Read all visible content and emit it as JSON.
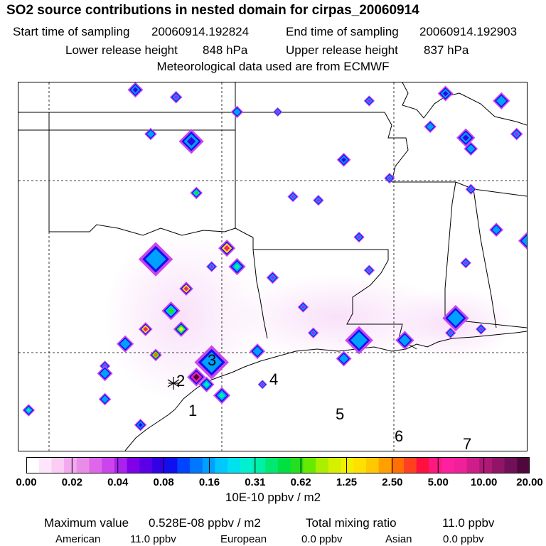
{
  "title": "SO2 source contributions in nested domain for cirpas_20060914",
  "sampling": {
    "start_label": "Start time of sampling",
    "start_value": "20060914.192824",
    "end_label": "End time of sampling",
    "end_value": "20060914.192903"
  },
  "release": {
    "lower_label": "Lower release height",
    "lower_value": "848 hPa",
    "upper_label": "Upper release height",
    "upper_value": "837 hPa"
  },
  "met_note": "Meteorological data used are from ECMWF",
  "colorbar": {
    "ticks": [
      "0.00",
      "0.02",
      "0.04",
      "0.08",
      "0.16",
      "0.31",
      "0.62",
      "1.25",
      "2.50",
      "5.00",
      "10.00",
      "20.00"
    ],
    "units": "10E-10 ppbv / m2",
    "colors": [
      "#ffffff",
      "#fde6fb",
      "#f9cdf4",
      "#f2a9ef",
      "#e98ce9",
      "#de66e8",
      "#cc44ee",
      "#aa22ee",
      "#8000e8",
      "#5a00e6",
      "#3300e8",
      "#1010ee",
      "#0044ff",
      "#0077ff",
      "#00a0ff",
      "#00c8ff",
      "#00e0ee",
      "#00f0d0",
      "#00f0a8",
      "#00e870",
      "#00e040",
      "#22e020",
      "#66ea00",
      "#aaee00",
      "#d6f000",
      "#f2f000",
      "#ffe000",
      "#ffc800",
      "#ffa000",
      "#ff7000",
      "#ff4020",
      "#ff1040",
      "#ff1880",
      "#ff20a0",
      "#f0209a",
      "#d01c88",
      "#b01878",
      "#901468",
      "#701058",
      "#50083c"
    ]
  },
  "stats": {
    "max_label": "Maximum value",
    "max_value": "0.528E-08 ppbv / m2",
    "total_label": "Total mixing ratio",
    "total_value": "11.0 ppbv",
    "american_label": "American",
    "american_value": "11.0 ppbv",
    "european_label": "European",
    "european_value": "0.0 ppbv",
    "asian_label": "Asian",
    "asian_value": "0.0 ppbv"
  },
  "map_labels": [
    "1",
    "2",
    "3",
    "4",
    "5",
    "6",
    "7"
  ],
  "sources": [
    {
      "lon": 0.23,
      "lat": 0.98,
      "v": 0.08,
      "s": 1
    },
    {
      "lon": 0.31,
      "lat": 0.96,
      "v": 0.04,
      "s": 0.8
    },
    {
      "lon": 0.43,
      "lat": 0.92,
      "v": 0.16,
      "s": 0.8
    },
    {
      "lon": 0.51,
      "lat": 0.92,
      "v": 0.04,
      "s": 0.6
    },
    {
      "lon": 0.69,
      "lat": 0.95,
      "v": 0.04,
      "s": 0.7
    },
    {
      "lon": 0.81,
      "lat": 0.88,
      "v": 0.16,
      "s": 0.8
    },
    {
      "lon": 0.84,
      "lat": 0.97,
      "v": 0.08,
      "s": 1
    },
    {
      "lon": 0.95,
      "lat": 0.95,
      "v": 0.16,
      "s": 1.1
    },
    {
      "lon": 0.26,
      "lat": 0.86,
      "v": 0.16,
      "s": 0.8
    },
    {
      "lon": 0.34,
      "lat": 0.84,
      "v": 0.08,
      "s": 1.6
    },
    {
      "lon": 0.64,
      "lat": 0.79,
      "v": 0.08,
      "s": 0.9
    },
    {
      "lon": 0.88,
      "lat": 0.85,
      "v": 0.08,
      "s": 1.2
    },
    {
      "lon": 0.98,
      "lat": 0.86,
      "v": 0.04,
      "s": 0.8
    },
    {
      "lon": 0.89,
      "lat": 0.82,
      "v": 0.16,
      "s": 0.9
    },
    {
      "lon": 0.73,
      "lat": 0.74,
      "v": 0.04,
      "s": 0.7
    },
    {
      "lon": 0.35,
      "lat": 0.7,
      "v": 0.62,
      "s": 0.8
    },
    {
      "lon": 0.54,
      "lat": 0.69,
      "v": 0.04,
      "s": 0.7
    },
    {
      "lon": 0.59,
      "lat": 0.68,
      "v": 0.04,
      "s": 0.7
    },
    {
      "lon": 0.89,
      "lat": 0.71,
      "v": 0.04,
      "s": 0.7
    },
    {
      "lon": 0.94,
      "lat": 0.6,
      "v": 0.16,
      "s": 0.9
    },
    {
      "lon": 0.67,
      "lat": 0.58,
      "v": 0.04,
      "s": 0.7
    },
    {
      "lon": 0.41,
      "lat": 0.55,
      "v": 5.0,
      "s": 1.1
    },
    {
      "lon": 0.27,
      "lat": 0.52,
      "v": 0.16,
      "s": 2.2
    },
    {
      "lon": 0.43,
      "lat": 0.5,
      "v": 0.31,
      "s": 1.1
    },
    {
      "lon": 0.38,
      "lat": 0.5,
      "v": 0.04,
      "s": 0.7
    },
    {
      "lon": 0.5,
      "lat": 0.47,
      "v": 0.04,
      "s": 0.8
    },
    {
      "lon": 0.69,
      "lat": 0.49,
      "v": 0.04,
      "s": 0.7
    },
    {
      "lon": 0.88,
      "lat": 0.51,
      "v": 0.04,
      "s": 0.7
    },
    {
      "lon": 1.0,
      "lat": 0.57,
      "v": 0.16,
      "s": 1.1
    },
    {
      "lon": 0.33,
      "lat": 0.44,
      "v": 5.0,
      "s": 0.9
    },
    {
      "lon": 0.3,
      "lat": 0.38,
      "v": 0.62,
      "s": 1.2
    },
    {
      "lon": 0.56,
      "lat": 0.39,
      "v": 0.04,
      "s": 0.7
    },
    {
      "lon": 0.25,
      "lat": 0.33,
      "v": 5.0,
      "s": 0.9
    },
    {
      "lon": 0.32,
      "lat": 0.33,
      "v": 1.25,
      "s": 1.0
    },
    {
      "lon": 0.58,
      "lat": 0.32,
      "v": 0.04,
      "s": 0.7
    },
    {
      "lon": 0.67,
      "lat": 0.3,
      "v": 0.16,
      "s": 1.8
    },
    {
      "lon": 0.76,
      "lat": 0.3,
      "v": 0.16,
      "s": 1.2
    },
    {
      "lon": 0.86,
      "lat": 0.36,
      "v": 0.16,
      "s": 1.7
    },
    {
      "lon": 0.91,
      "lat": 0.33,
      "v": 0.04,
      "s": 0.7
    },
    {
      "lon": 0.85,
      "lat": 0.32,
      "v": 0.04,
      "s": 0.7
    },
    {
      "lon": 0.21,
      "lat": 0.29,
      "v": 0.16,
      "s": 1.1
    },
    {
      "lon": 0.27,
      "lat": 0.26,
      "v": 2.5,
      "s": 0.8
    },
    {
      "lon": 0.47,
      "lat": 0.27,
      "v": 0.16,
      "s": 1.0
    },
    {
      "lon": 0.64,
      "lat": 0.25,
      "v": 0.16,
      "s": 1.0
    },
    {
      "lon": 0.38,
      "lat": 0.24,
      "v": 0.16,
      "s": 2.2
    },
    {
      "lon": 0.17,
      "lat": 0.23,
      "v": 0.04,
      "s": 0.7
    },
    {
      "lon": 0.35,
      "lat": 0.2,
      "v": 20.0,
      "s": 1.2
    },
    {
      "lon": 0.37,
      "lat": 0.18,
      "v": 0.31,
      "s": 1.0
    },
    {
      "lon": 0.17,
      "lat": 0.21,
      "v": 0.16,
      "s": 1.0
    },
    {
      "lon": 0.4,
      "lat": 0.15,
      "v": 0.31,
      "s": 1.1
    },
    {
      "lon": 0.17,
      "lat": 0.14,
      "v": 0.16,
      "s": 0.8
    },
    {
      "lon": 0.02,
      "lat": 0.11,
      "v": 0.31,
      "s": 0.8
    },
    {
      "lon": 0.24,
      "lat": 0.07,
      "v": 0.08,
      "s": 0.8
    },
    {
      "lon": 0.48,
      "lat": 0.18,
      "v": 0.04,
      "s": 0.6
    }
  ],
  "source_marker_label": "2"
}
